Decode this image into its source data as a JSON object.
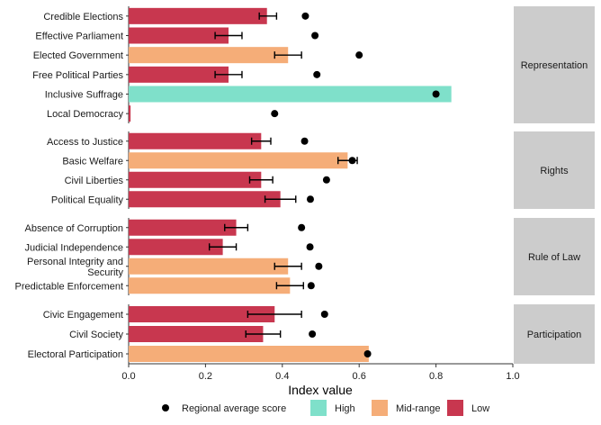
{
  "chart_data": {
    "type": "bar",
    "orientation": "horizontal",
    "xlabel": "Index value",
    "xlim": [
      0,
      1
    ],
    "xticks": [
      "0.0",
      "0.2",
      "0.4",
      "0.6",
      "0.8",
      "1.0"
    ],
    "grid": false,
    "colors": {
      "High": "#7fe0ca",
      "Mid-range": "#f5ad78",
      "Low": "#c8374f",
      "marker": "#000000",
      "strip": "#cccccc"
    },
    "legend": {
      "position": "bottom",
      "marker_label": "Regional average score",
      "categories": [
        "High",
        "Mid-range",
        "Low"
      ]
    },
    "panels": [
      {
        "name": "Representation",
        "bars": [
          {
            "label": "Credible Elections",
            "value": 0.36,
            "ci": [
              0.34,
              0.385
            ],
            "category": "Low",
            "regional_avg": 0.46
          },
          {
            "label": "Effective Parliament",
            "value": 0.26,
            "ci": [
              0.225,
              0.295
            ],
            "category": "Low",
            "regional_avg": 0.485
          },
          {
            "label": "Elected Government",
            "value": 0.415,
            "ci": [
              0.38,
              0.45
            ],
            "category": "Mid-range",
            "regional_avg": 0.6
          },
          {
            "label": "Free Political Parties",
            "value": 0.26,
            "ci": [
              0.225,
              0.295
            ],
            "category": "Low",
            "regional_avg": 0.49
          },
          {
            "label": "Inclusive Suffrage",
            "value": 0.84,
            "ci": null,
            "category": "High",
            "regional_avg": 0.8
          },
          {
            "label": "Local Democracy",
            "value": 0.005,
            "ci": null,
            "category": "Low",
            "regional_avg": 0.38
          }
        ]
      },
      {
        "name": "Rights",
        "bars": [
          {
            "label": "Access to Justice",
            "value": 0.345,
            "ci": [
              0.32,
              0.37
            ],
            "category": "Low",
            "regional_avg": 0.458
          },
          {
            "label": "Basic Welfare",
            "value": 0.57,
            "ci": [
              0.545,
              0.595
            ],
            "category": "Mid-range",
            "regional_avg": 0.582
          },
          {
            "label": "Civil Liberties",
            "value": 0.345,
            "ci": [
              0.315,
              0.375
            ],
            "category": "Low",
            "regional_avg": 0.515
          },
          {
            "label": "Political Equality",
            "value": 0.395,
            "ci": [
              0.355,
              0.435
            ],
            "category": "Low",
            "regional_avg": 0.473
          }
        ]
      },
      {
        "name": "Rule of Law",
        "bars": [
          {
            "label": "Absence of Corruption",
            "value": 0.28,
            "ci": [
              0.25,
              0.31
            ],
            "category": "Low",
            "regional_avg": 0.45
          },
          {
            "label": "Judicial Independence",
            "value": 0.245,
            "ci": [
              0.21,
              0.28
            ],
            "category": "Low",
            "regional_avg": 0.472
          },
          {
            "label": "Personal Integrity and Security",
            "value": 0.415,
            "ci": [
              0.38,
              0.45
            ],
            "category": "Mid-range",
            "regional_avg": 0.495
          },
          {
            "label": "Predictable Enforcement",
            "value": 0.42,
            "ci": [
              0.385,
              0.455
            ],
            "category": "Mid-range",
            "regional_avg": 0.475
          }
        ]
      },
      {
        "name": "Participation",
        "bars": [
          {
            "label": "Civic Engagement",
            "value": 0.38,
            "ci": [
              0.31,
              0.45
            ],
            "category": "Low",
            "regional_avg": 0.51
          },
          {
            "label": "Civil Society",
            "value": 0.35,
            "ci": [
              0.305,
              0.395
            ],
            "category": "Low",
            "regional_avg": 0.478
          },
          {
            "label": "Electoral Participation",
            "value": 0.625,
            "ci": null,
            "category": "Mid-range",
            "regional_avg": 0.622
          }
        ]
      }
    ]
  }
}
